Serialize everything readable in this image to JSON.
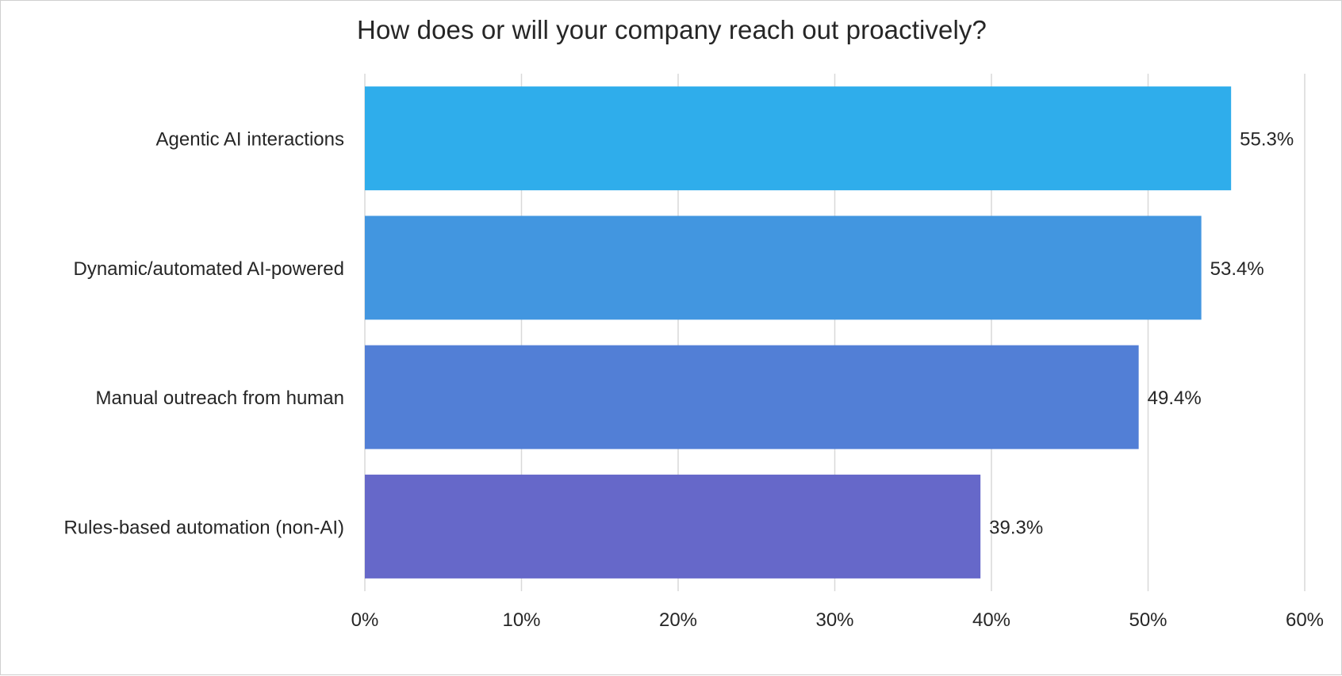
{
  "chart_data": {
    "type": "bar",
    "orientation": "horizontal",
    "title": "How does or will your company reach out proactively?",
    "categories": [
      "Agentic AI interactions",
      "Dynamic/automated AI-powered",
      "Manual outreach from human",
      "Rules-based automation (non-AI)"
    ],
    "values": [
      55.3,
      53.4,
      49.4,
      39.3
    ],
    "data_labels": [
      "55.3%",
      "53.4%",
      "49.4%",
      "39.3%"
    ],
    "bar_colors": [
      "#2fadeb",
      "#4296e0",
      "#527fd6",
      "#6668c9"
    ],
    "xlim": [
      0,
      60
    ],
    "x_ticks": [
      0,
      10,
      20,
      30,
      40,
      50,
      60
    ],
    "x_tick_labels": [
      "0%",
      "10%",
      "20%",
      "30%",
      "40%",
      "50%",
      "60%"
    ],
    "xlabel": "",
    "ylabel": "",
    "grid": "vertical",
    "legend": "none"
  }
}
